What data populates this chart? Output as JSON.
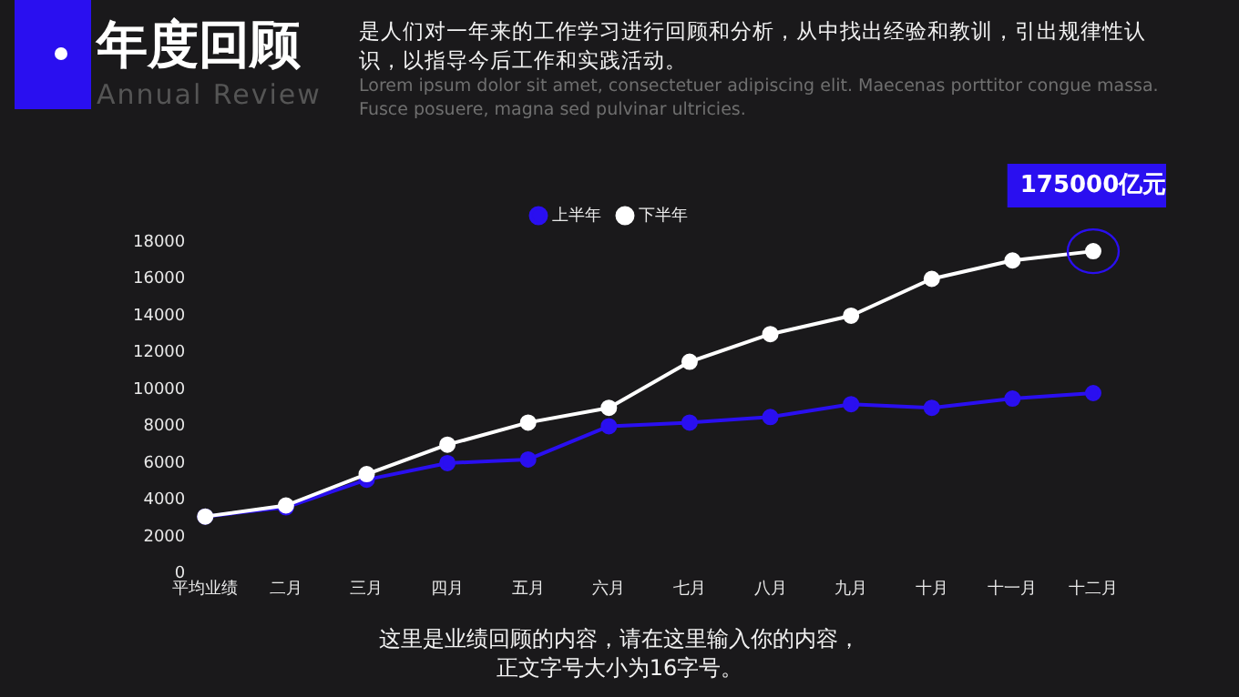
{
  "chart_data": {
    "type": "line",
    "title": "年度回顾",
    "subtitle": "Annual Review",
    "categories": [
      "平均业绩",
      "二月",
      "三月",
      "四月",
      "五月",
      "六月",
      "七月",
      "八月",
      "九月",
      "十月",
      "十一月",
      "十二月"
    ],
    "series": [
      {
        "name": "上半年",
        "color": "#2a0ff0",
        "values": [
          3100,
          3600,
          5100,
          6000,
          6200,
          8000,
          8200,
          8500,
          9200,
          9000,
          9500,
          9800
        ]
      },
      {
        "name": "下半年",
        "color": "#ffffff",
        "values": [
          3100,
          3700,
          5400,
          7000,
          8200,
          9000,
          11500,
          13000,
          14000,
          16000,
          17000,
          17500
        ]
      }
    ],
    "ylim": [
      0,
      18000
    ],
    "yticks": [
      0,
      2000,
      4000,
      6000,
      8000,
      10000,
      12000,
      14000,
      16000,
      18000
    ],
    "grid": false,
    "legend": "top",
    "marker": "circle",
    "line_style": "solid",
    "annotations": [
      "是人们对一年来的工作学习进行回顾和分析，从中找出经验和教训，引出规律性认识，以指导今后工作和实践活动。",
      "Lorem ipsum dolor sit amet, consectetuer adipiscing elit. Maecenas porttitor congue massa. Fusce posuere, magna sed pulvinar ultricies.",
      {
        "text": "175000亿元",
        "x": "十二月",
        "y": 17500
      },
      "这里是业绩回顾的内容，请在这里输入你的内容，",
      "正文字号大小为16字号。"
    ]
  }
}
